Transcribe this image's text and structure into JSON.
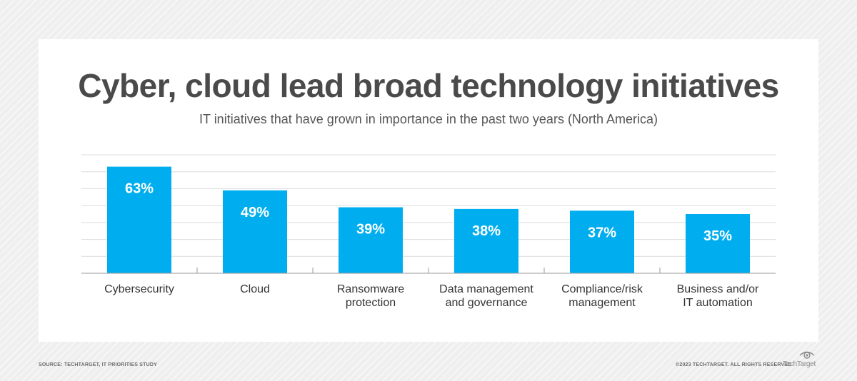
{
  "chart_data": {
    "type": "bar",
    "title": "Cyber, cloud lead broad technology initiatives",
    "subtitle": "IT initiatives that have grown in importance in the past two years (North America)",
    "categories": [
      [
        "Cybersecurity"
      ],
      [
        "Cloud"
      ],
      [
        "Ransomware",
        "protection"
      ],
      [
        "Data management",
        "and governance"
      ],
      [
        "Compliance/risk",
        "management"
      ],
      [
        "Business and/or",
        "IT automation"
      ]
    ],
    "values": [
      63,
      49,
      39,
      38,
      37,
      35
    ],
    "value_labels": [
      "63%",
      "49%",
      "39%",
      "38%",
      "37%",
      "35%"
    ],
    "ylim": [
      0,
      70
    ],
    "grid": true,
    "bar_color": "#00aeef",
    "value_label_color": "#ffffff"
  },
  "footer": {
    "source": "SOURCE: TECHTARGET, IT PRIORITIES STUDY",
    "copyright": "©2023 TECHTARGET. ALL RIGHTS RESERVED"
  },
  "logo": {
    "text": "TechTarget",
    "icon": "eye-icon"
  }
}
